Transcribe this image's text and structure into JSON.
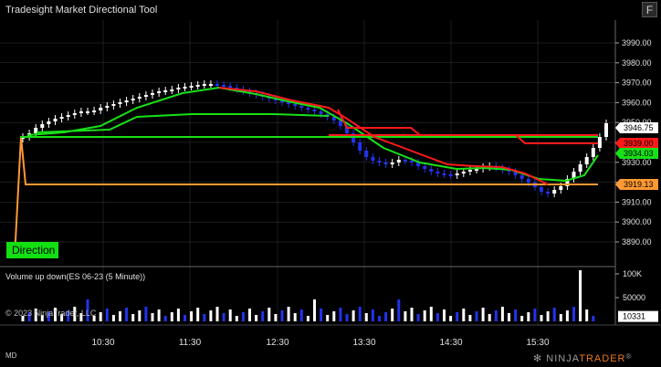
{
  "window": {
    "title": "Tradesight Market Directional Tool",
    "f_button": "F",
    "md_label": "MD"
  },
  "indicator": {
    "direction_button": "Direction",
    "volume_panel_label": "Volume up down(ES 06-23 (5 Minute))",
    "copyright": "© 2023 NinjaTrader, LLC"
  },
  "price_axis": {
    "ticks": [
      "3990.00",
      "3980.00",
      "3970.00",
      "3960.00",
      "3950.00",
      "3940.00",
      "3930.00",
      "3920.00",
      "3910.00",
      "3900.00",
      "3890.00"
    ],
    "price_values": [
      3990,
      3980,
      3970,
      3960,
      3950,
      3940,
      3930,
      3920,
      3910,
      3900,
      3890
    ],
    "markers": [
      {
        "label": "3946.75",
        "value": 3946.75,
        "color": "#ffffff",
        "text_color": "#000000"
      },
      {
        "label": "3939.00",
        "value": 3939.0,
        "color": "#ff1a1a",
        "text_color": "#000000"
      },
      {
        "label": "3934.03",
        "value": 3934.03,
        "color": "#18e018",
        "text_color": "#000000"
      },
      {
        "label": "3919.13",
        "value": 3919.13,
        "color": "#ff9933",
        "text_color": "#000000"
      }
    ]
  },
  "volume_axis": {
    "ticks": [
      "100K",
      "50000"
    ],
    "tick_values": [
      100000,
      50000
    ],
    "current_label": "10331",
    "current_value": 10331
  },
  "time_axis": {
    "labels": [
      "10:30",
      "11:30",
      "12:30",
      "13:30",
      "14:30",
      "15:30"
    ]
  },
  "logo": {
    "prefix": "NINJA",
    "brand": "TRADER",
    "suffix": "®",
    "icon": "ninjatrader-logo-icon"
  },
  "colors": {
    "background": "#000000",
    "up_candle": "#ffffff",
    "down_candle": "#2233ee",
    "green_line": "#18e018",
    "red_line": "#ff1a1a",
    "orange_line": "#ff9933",
    "grid": "#3a3a3a"
  }
}
